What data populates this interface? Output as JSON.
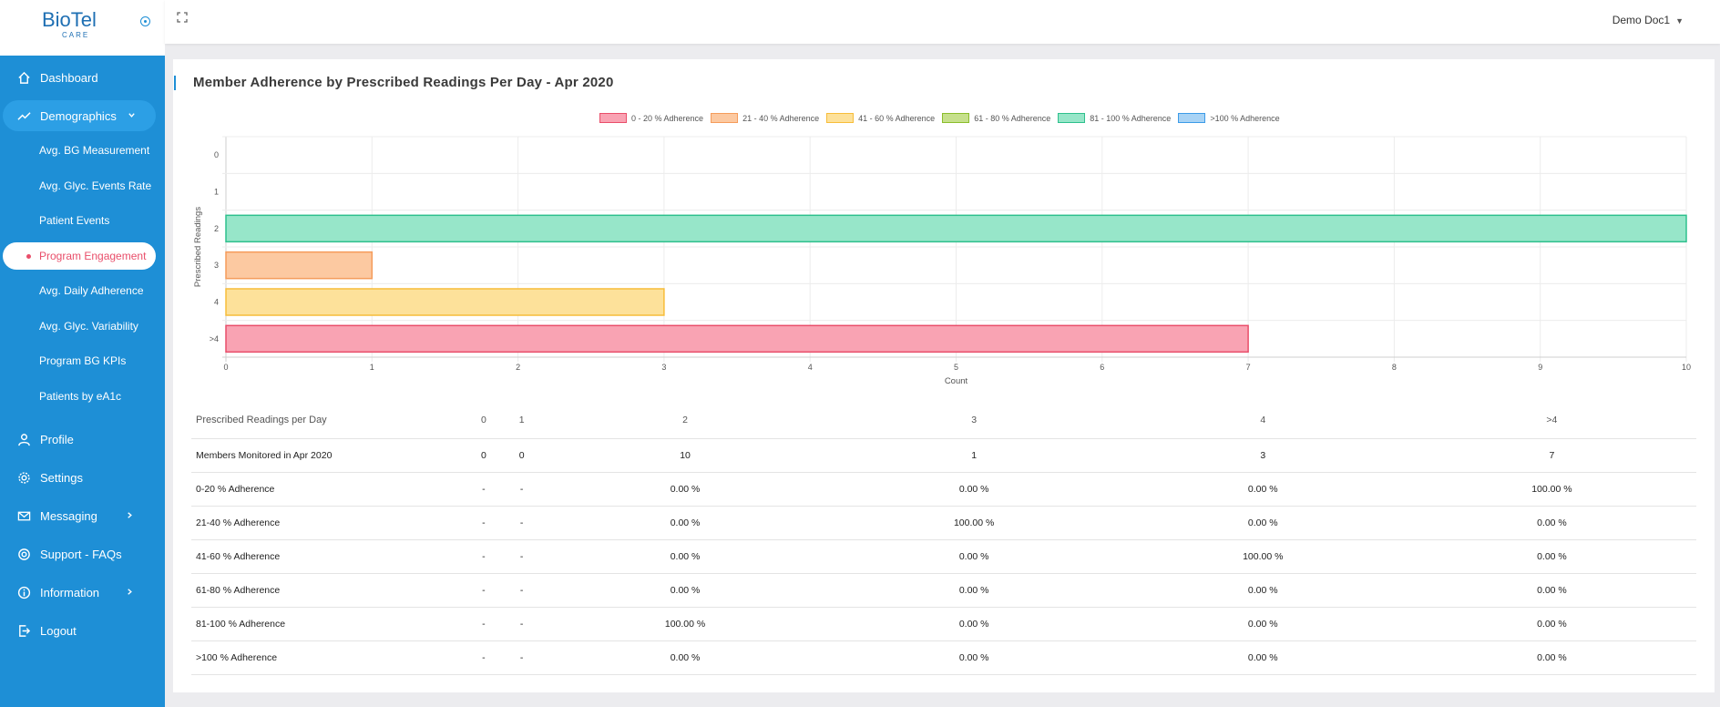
{
  "brand": {
    "name": "BioTel",
    "sub": "CARE"
  },
  "user": {
    "name": "Demo Doc1"
  },
  "sidebar": {
    "items": [
      {
        "label": "Dashboard",
        "icon": "home-icon"
      },
      {
        "label": "Demographics",
        "icon": "trend-icon"
      },
      {
        "label": "Profile",
        "icon": "user-icon"
      },
      {
        "label": "Settings",
        "icon": "gear-icon"
      },
      {
        "label": "Messaging",
        "icon": "mail-icon"
      },
      {
        "label": "Support - FAQs",
        "icon": "lifebuoy-icon"
      },
      {
        "label": "Information",
        "icon": "info-icon"
      },
      {
        "label": "Logout",
        "icon": "logout-icon"
      }
    ],
    "subitems": [
      {
        "label": "Avg. BG Measurement"
      },
      {
        "label": "Avg. Glyc. Events Rate"
      },
      {
        "label": "Patient Events"
      },
      {
        "label": "Program Engagement"
      },
      {
        "label": "Avg. Daily Adherence"
      },
      {
        "label": "Avg. Glyc. Variability"
      },
      {
        "label": "Program BG KPIs"
      },
      {
        "label": "Patients by eA1c"
      }
    ]
  },
  "card": {
    "title": "Member Adherence by Prescribed Readings Per Day - Apr 2020"
  },
  "chart_data": {
    "type": "bar",
    "orientation": "horizontal",
    "title": "",
    "xlabel": "Count",
    "ylabel": "Prescribed Readings",
    "xlim": [
      0,
      10
    ],
    "x_ticks": [
      "0",
      "1",
      "2",
      "3",
      "4",
      "5",
      "6",
      "7",
      "8",
      "9",
      "10"
    ],
    "categories": [
      "0",
      "1",
      "2",
      "3",
      "4",
      ">4"
    ],
    "legend_position": "top",
    "grid": true,
    "series": [
      {
        "name": "0 - 20 % Adherence",
        "fill": "#f9a3b3",
        "stroke": "#e94e6a",
        "values": [
          0,
          0,
          0,
          0,
          0,
          7
        ]
      },
      {
        "name": "21 - 40 % Adherence",
        "fill": "#fcc9a1",
        "stroke": "#f59c5b",
        "values": [
          0,
          0,
          0,
          1,
          0,
          0
        ]
      },
      {
        "name": "41 - 60 % Adherence",
        "fill": "#fde19a",
        "stroke": "#f7bd3a",
        "values": [
          0,
          0,
          0,
          0,
          3,
          0
        ]
      },
      {
        "name": "61 - 80 % Adherence",
        "fill": "#c6e08c",
        "stroke": "#8bbd2b",
        "values": [
          0,
          0,
          0,
          0,
          0,
          0
        ]
      },
      {
        "name": "81 - 100 % Adherence",
        "fill": "#97e6c9",
        "stroke": "#2ec08d",
        "values": [
          0,
          0,
          10,
          0,
          0,
          0
        ]
      },
      {
        "name": ">100 % Adherence",
        "fill": "#a8d3f5",
        "stroke": "#3c9be8",
        "values": [
          0,
          0,
          0,
          0,
          0,
          0
        ]
      }
    ]
  },
  "table": {
    "headers": [
      "Prescribed Readings per Day",
      "0",
      "1",
      "2",
      "3",
      "4",
      ">4"
    ],
    "rows": [
      [
        "Members Monitored in Apr 2020",
        "0",
        "0",
        "10",
        "1",
        "3",
        "7"
      ],
      [
        "0-20 % Adherence",
        "-",
        "-",
        "0.00 %",
        "0.00 %",
        "0.00 %",
        "100.00 %"
      ],
      [
        "21-40 % Adherence",
        "-",
        "-",
        "0.00 %",
        "100.00 %",
        "0.00 %",
        "0.00 %"
      ],
      [
        "41-60 % Adherence",
        "-",
        "-",
        "0.00 %",
        "0.00 %",
        "100.00 %",
        "0.00 %"
      ],
      [
        "61-80 % Adherence",
        "-",
        "-",
        "0.00 %",
        "0.00 %",
        "0.00 %",
        "0.00 %"
      ],
      [
        "81-100 % Adherence",
        "-",
        "-",
        "100.00 %",
        "0.00 %",
        "0.00 %",
        "0.00 %"
      ],
      [
        ">100 % Adherence",
        "-",
        "-",
        "0.00 %",
        "0.00 %",
        "0.00 %",
        "0.00 %"
      ]
    ]
  }
}
